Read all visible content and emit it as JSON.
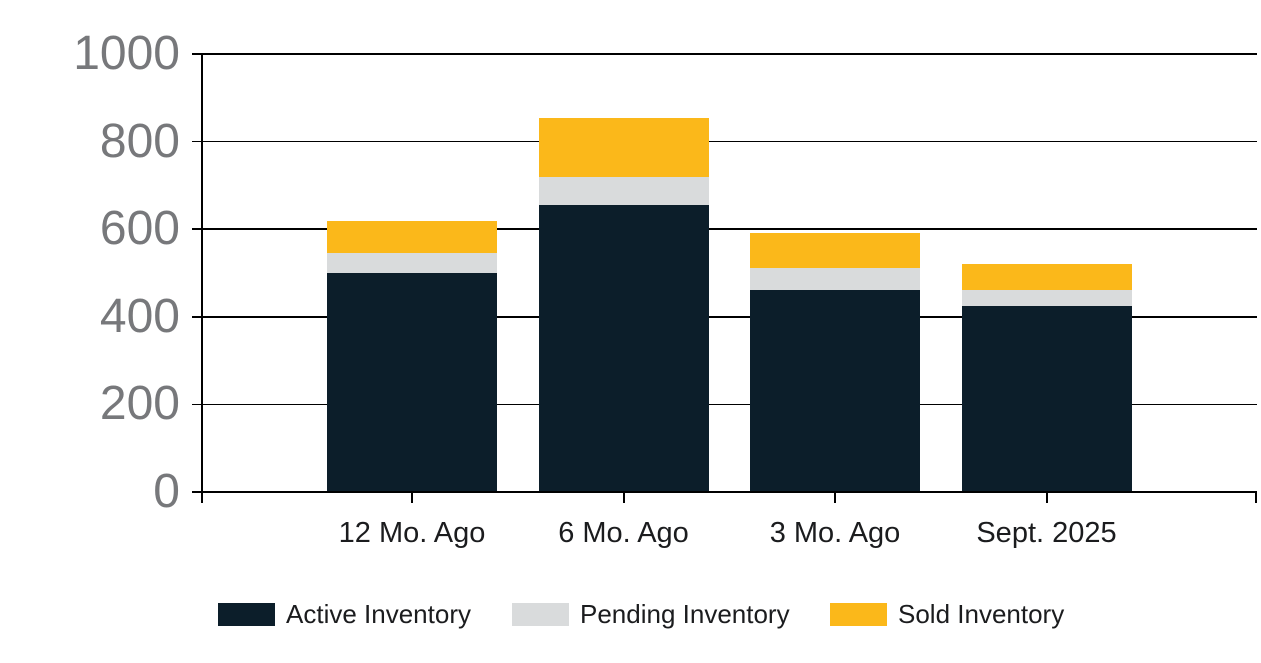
{
  "chart_data": {
    "type": "bar",
    "variant": "stacked-column",
    "title": "",
    "categories": [
      "12 Mo. Ago",
      "6 Mo. Ago",
      "3 Mo. Ago",
      "Sept. 2025"
    ],
    "series": [
      {
        "name": "Active Inventory",
        "color": "#0c1e2a",
        "values": [
          500,
          655,
          462,
          424
        ]
      },
      {
        "name": "Pending Inventory",
        "color": "#d9dbdc",
        "values": [
          46,
          65,
          50,
          38
        ]
      },
      {
        "name": "Sold Inventory",
        "color": "#fbb81a",
        "values": [
          72,
          134,
          80,
          59
        ]
      }
    ],
    "stack_totals": [
      618,
      854,
      592,
      521
    ],
    "xlabel": "",
    "ylabel": "",
    "ylim": [
      0,
      1000
    ],
    "y_ticks": [
      0,
      200,
      400,
      600,
      800,
      1000
    ],
    "grid": "horizontal",
    "gridline_color": "#000000",
    "legend_position": "bottom",
    "colors": {
      "axis": "#000000",
      "y_tick_label": "#77787b",
      "x_tick_label": "#1b1c1e",
      "legend_label": "#1b1c1e",
      "background": "#ffffff"
    }
  }
}
